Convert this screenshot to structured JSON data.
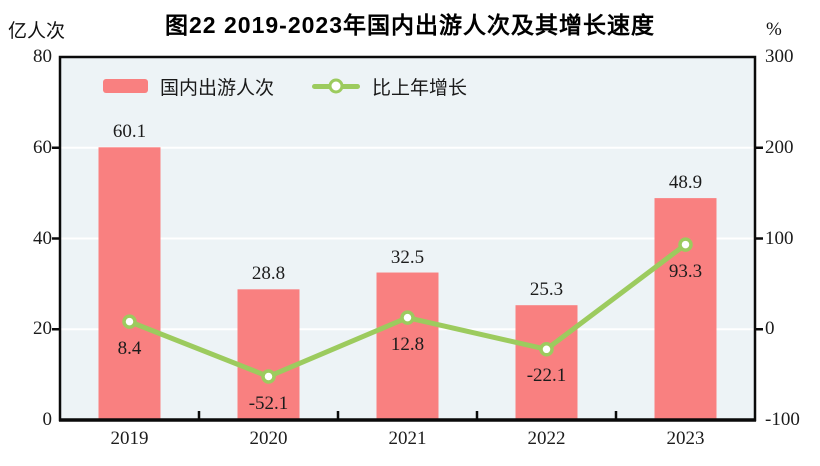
{
  "title": "图22  2019-2023年国内出游人次及其增长速度",
  "left_axis": {
    "unit": "亿人次",
    "min": 0,
    "max": 80,
    "ticks": [
      0,
      20,
      40,
      60,
      80
    ]
  },
  "right_axis": {
    "unit": "%",
    "min": -100,
    "max": 300,
    "ticks": [
      -100,
      0,
      100,
      200,
      300
    ]
  },
  "legend": {
    "bar_label": "国内出游人次",
    "line_label": "比上年增长"
  },
  "colors": {
    "bar": "#f98080",
    "line": "#9ccb5e",
    "marker_fill": "#ffffff",
    "plot_background": "#edf3f6",
    "gridline": "#ffffff",
    "axis": "#0a0a0a",
    "text": "#1c1c1c"
  },
  "chart_data": {
    "type": "bar+line combo",
    "title": "图22  2019-2023年国内出游人次及其增长速度",
    "categories": [
      "2019",
      "2020",
      "2021",
      "2022",
      "2023"
    ],
    "series": [
      {
        "name": "国内出游人次",
        "type": "bar",
        "axis": "left",
        "unit": "亿人次",
        "values": [
          60.1,
          28.8,
          32.5,
          25.3,
          48.9
        ],
        "labels": [
          "60.1",
          "28.8",
          "32.5",
          "25.3",
          "48.9"
        ]
      },
      {
        "name": "比上年增长",
        "type": "line",
        "axis": "right",
        "unit": "%",
        "values": [
          8.4,
          -52.1,
          12.8,
          -22.1,
          93.3
        ],
        "labels": [
          "8.4",
          "-52.1",
          "12.8",
          "-22.1",
          "93.3"
        ]
      }
    ],
    "ylabel_left": "亿人次",
    "ylabel_right": "%",
    "ylim_left": [
      0,
      80
    ],
    "ylim_right": [
      -100,
      300
    ],
    "grid": true,
    "legend_position": "top-left-inside"
  }
}
